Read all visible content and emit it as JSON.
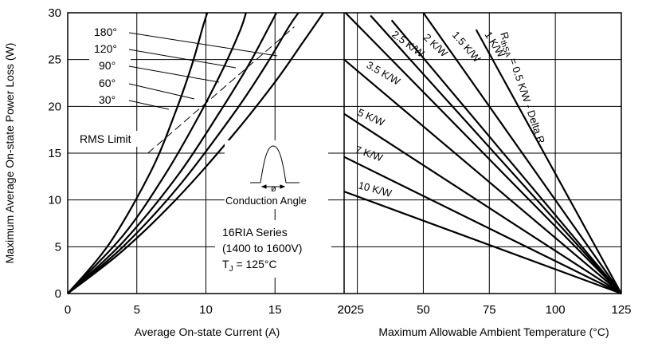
{
  "chart_data": {
    "type": "line",
    "ylabel": "Maximum Average On-state Power Loss (W)",
    "ylim": [
      0,
      30
    ],
    "yticks": [
      "0",
      "5",
      "10",
      "15",
      "20",
      "25",
      "30"
    ],
    "grid": true,
    "left_panel": {
      "xlabel": "Average On-state Current (A)",
      "xlim": [
        0,
        20
      ],
      "xticks": [
        "0",
        "5",
        "10",
        "15",
        "20"
      ],
      "series": [
        {
          "name": "180°",
          "points": [
            [
              0,
              0
            ],
            [
              4,
              4.6
            ],
            [
              8,
              10.3
            ],
            [
              12,
              17
            ],
            [
              15,
              22.6
            ],
            [
              17,
              26.8
            ],
            [
              18.5,
              30
            ]
          ]
        },
        {
          "name": "120°",
          "points": [
            [
              0,
              0
            ],
            [
              4,
              5
            ],
            [
              8,
              11.4
            ],
            [
              12,
              19.2
            ],
            [
              14.3,
              24.3
            ],
            [
              16,
              28.5
            ],
            [
              16.7,
              30
            ]
          ]
        },
        {
          "name": "90°",
          "points": [
            [
              0,
              0
            ],
            [
              4,
              5.5
            ],
            [
              8,
              12.7
            ],
            [
              11,
              19.4
            ],
            [
              13,
              24.2
            ],
            [
              14.5,
              28.3
            ],
            [
              15.1,
              30
            ]
          ]
        },
        {
          "name": "60°",
          "points": [
            [
              0,
              0
            ],
            [
              4,
              6.2
            ],
            [
              7,
              12.6
            ],
            [
              9.5,
              19
            ],
            [
              11.3,
              24.2
            ],
            [
              12.5,
              28.2
            ],
            [
              12.9,
              30
            ]
          ]
        },
        {
          "name": "30°",
          "points": [
            [
              0,
              0
            ],
            [
              3,
              5.3
            ],
            [
              6,
              13
            ],
            [
              7.8,
              19.4
            ],
            [
              9,
              24.5
            ],
            [
              9.8,
              28.6
            ],
            [
              10.1,
              30
            ]
          ]
        }
      ],
      "rms_limit": {
        "name": "RMS Limit",
        "points": [
          [
            5.8,
            15
          ],
          [
            16.4,
            28.5
          ]
        ]
      },
      "angle_labels": [
        "180°",
        "120°",
        "90°",
        "60°",
        "30°"
      ],
      "annotations": {
        "rms": "RMS Limit",
        "conduction": "Conduction Angle",
        "phi": "ø",
        "series_line1": "16RIA Series",
        "series_line2": "(1400 to 1600V)",
        "tj_prefix": "T",
        "tj_sub": "J",
        "tj_suffix": " = 125°C"
      }
    },
    "right_panel": {
      "xlabel": "Maximum Allowable Ambient Temperature (°C)",
      "xlim": [
        20,
        125
      ],
      "xticks": [
        "20",
        "25",
        "50",
        "75",
        "100",
        "125"
      ],
      "series": [
        {
          "name": "R thSA = 0.5 K/W - Delta R",
          "points": [
            [
              70,
              28.2
            ],
            [
              125,
              0
            ]
          ]
        },
        {
          "name": "1 K/W",
          "points": [
            [
              50,
              30
            ],
            [
              125,
              0
            ]
          ]
        },
        {
          "name": "1.5 K/W",
          "points": [
            [
              38,
              29.2
            ],
            [
              125,
              0
            ]
          ]
        },
        {
          "name": "2 K/W",
          "points": [
            [
              30,
              29.7
            ],
            [
              125,
              0
            ]
          ]
        },
        {
          "name": "2.5 K/W",
          "points": [
            [
              20.5,
              30
            ],
            [
              125,
              0
            ]
          ]
        },
        {
          "name": "3.5 K/W",
          "points": [
            [
              20,
              25
            ],
            [
              125,
              0
            ]
          ]
        },
        {
          "name": "5 K/W",
          "points": [
            [
              20,
              19.2
            ],
            [
              125,
              0
            ]
          ]
        },
        {
          "name": "7 K/W",
          "points": [
            [
              20,
              14.6
            ],
            [
              125,
              0
            ]
          ]
        },
        {
          "name": "10 K/W",
          "points": [
            [
              20,
              10.9
            ],
            [
              125,
              0
            ]
          ]
        }
      ],
      "line_labels": {
        "r_main": "R",
        "r_sub": "thSA",
        "r_rest": " = 0.5 K/W - Delta R",
        "k1": "1 K/W",
        "k15": "1.5 K/W",
        "k2": "2 K/W",
        "k25": "2.5 K/W",
        "k35": "3.5 K/W",
        "k5": "5 K/W",
        "k7": "7 K/W",
        "k10": "10 K/W"
      }
    }
  }
}
